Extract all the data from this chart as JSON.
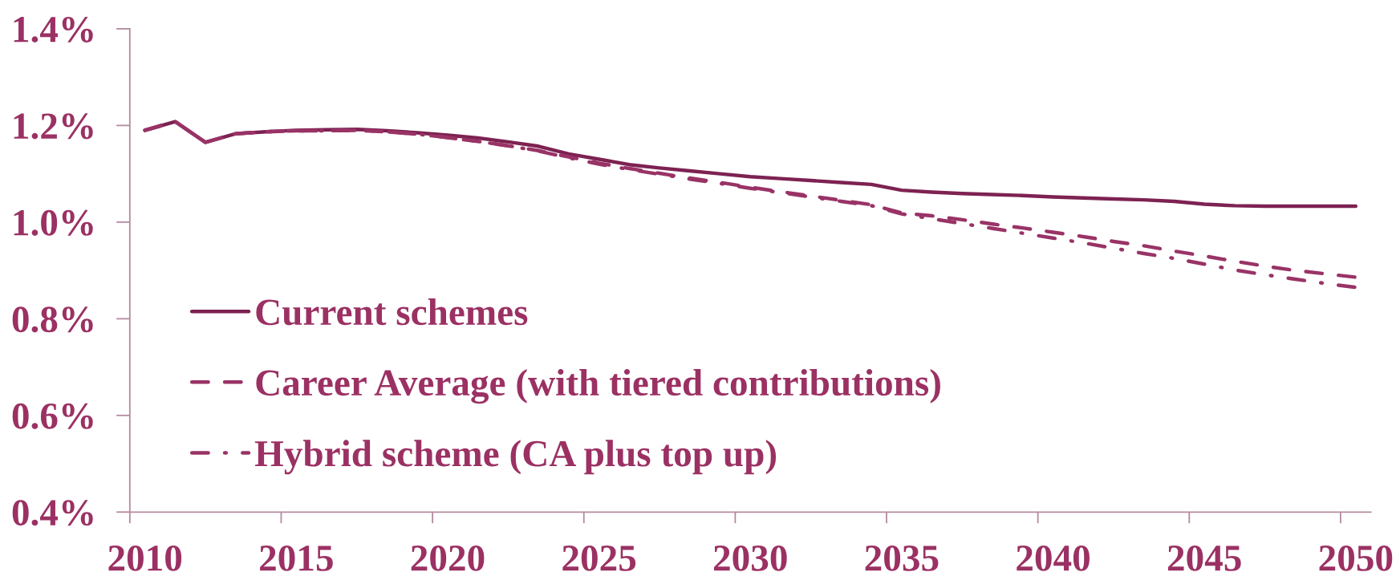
{
  "chart_data": {
    "type": "line",
    "x": [
      2010,
      2011,
      2012,
      2013,
      2014,
      2015,
      2016,
      2017,
      2018,
      2019,
      2020,
      2021,
      2022,
      2023,
      2024,
      2025,
      2026,
      2027,
      2028,
      2029,
      2030,
      2031,
      2032,
      2033,
      2034,
      2035,
      2036,
      2037,
      2038,
      2039,
      2040,
      2041,
      2042,
      2043,
      2044,
      2045,
      2046,
      2047,
      2048,
      2049,
      2050
    ],
    "series": [
      {
        "name": "Current schemes",
        "color": "#7d2252",
        "line_style": "solid",
        "values": [
          1.19,
          1.208,
          1.165,
          1.183,
          1.187,
          1.19,
          1.191,
          1.192,
          1.189,
          1.185,
          1.18,
          1.174,
          1.166,
          1.157,
          1.141,
          1.13,
          1.119,
          1.112,
          1.106,
          1.1,
          1.094,
          1.09,
          1.086,
          1.082,
          1.078,
          1.066,
          1.062,
          1.059,
          1.057,
          1.055,
          1.052,
          1.05,
          1.048,
          1.046,
          1.043,
          1.037,
          1.034,
          1.033,
          1.033,
          1.033,
          1.033
        ]
      },
      {
        "name": "Career Average (with tiered contributions)",
        "color": "#993366",
        "line_style": "dashed",
        "values": [
          1.19,
          1.208,
          1.165,
          1.183,
          1.187,
          1.189,
          1.189,
          1.19,
          1.187,
          1.182,
          1.175,
          1.167,
          1.158,
          1.148,
          1.135,
          1.122,
          1.111,
          1.101,
          1.091,
          1.082,
          1.072,
          1.063,
          1.054,
          1.045,
          1.036,
          1.019,
          1.013,
          1.005,
          0.996,
          0.988,
          0.979,
          0.97,
          0.96,
          0.951,
          0.94,
          0.93,
          0.919,
          0.909,
          0.9,
          0.893,
          0.886
        ]
      },
      {
        "name": "Hybrid scheme (CA plus top up)",
        "color": "#993366",
        "line_style": "dashdot",
        "values": [
          1.19,
          1.208,
          1.165,
          1.183,
          1.187,
          1.189,
          1.189,
          1.19,
          1.187,
          1.182,
          1.175,
          1.167,
          1.158,
          1.147,
          1.133,
          1.12,
          1.109,
          1.099,
          1.089,
          1.08,
          1.07,
          1.061,
          1.052,
          1.043,
          1.034,
          1.017,
          1.007,
          0.997,
          0.987,
          0.977,
          0.967,
          0.957,
          0.946,
          0.935,
          0.925,
          0.913,
          0.901,
          0.891,
          0.882,
          0.873,
          0.865
        ]
      }
    ],
    "xlim": [
      2009.5,
      2050.5
    ],
    "xticks": [
      {
        "value": 2009.5,
        "label": null
      },
      2010,
      {
        "value": 2014.5,
        "label": null
      },
      2015,
      {
        "value": 2019.5,
        "label": null
      },
      2020,
      {
        "value": 2024.5,
        "label": null
      },
      2025,
      {
        "value": 2029.5,
        "label": null
      },
      2030,
      {
        "value": 2034.5,
        "label": null
      },
      2035,
      {
        "value": 2039.5,
        "label": null
      },
      2040,
      {
        "value": 2044.5,
        "label": null
      },
      2045,
      {
        "value": 2049.5,
        "label": null
      },
      2050
    ],
    "ylim": [
      0.4,
      1.4
    ],
    "yticks": [
      {
        "value": 0.4,
        "label": "0.4%"
      },
      {
        "value": 0.6,
        "label": "0.6%"
      },
      {
        "value": 0.8,
        "label": "0.8%"
      },
      {
        "value": 1.0,
        "label": "1.0%"
      },
      {
        "value": 1.2,
        "label": "1.2%"
      },
      {
        "value": 1.4,
        "label": "1.4%"
      }
    ],
    "legend": "lower left"
  }
}
